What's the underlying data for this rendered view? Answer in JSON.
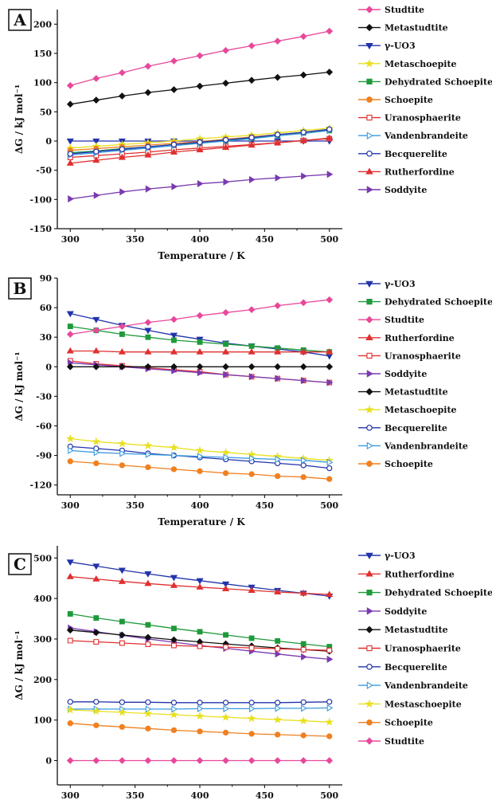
{
  "chart_data": [
    {
      "panel": "A",
      "type": "line",
      "xlabel": "Temperature / K",
      "ylabel": "ΔG / kJ mol⁻¹",
      "xlim": [
        290,
        510
      ],
      "ylim": [
        -150,
        225
      ],
      "xticks": [
        300,
        350,
        400,
        450,
        500
      ],
      "yticks": [
        -150,
        -100,
        -50,
        0,
        50,
        100,
        150,
        200
      ],
      "x": [
        300,
        320,
        340,
        360,
        380,
        400,
        420,
        440,
        460,
        480,
        500
      ],
      "legend_position": "right",
      "series": [
        {
          "name": "Studtite",
          "color": "#e8489a",
          "marker": "diamond",
          "values": [
            95,
            107,
            117,
            128,
            137,
            146,
            155,
            163,
            171,
            179,
            188
          ]
        },
        {
          "name": "Metastudtite",
          "color": "#111111",
          "marker": "diamond",
          "values": [
            63,
            70,
            77,
            83,
            88,
            94,
            99,
            104,
            109,
            113,
            118
          ]
        },
        {
          "name": "γ-UO3",
          "color": "#2233aa",
          "marker": "tri-down",
          "values": [
            0,
            0,
            0,
            0,
            0,
            0,
            0,
            0,
            0,
            0,
            0
          ]
        },
        {
          "name": "Metaschoepite",
          "color": "#e8e020",
          "marker": "star",
          "values": [
            -12,
            -9,
            -6,
            -3,
            0,
            4,
            7,
            10,
            14,
            18,
            22
          ]
        },
        {
          "name": "Dehydrated Schoepite",
          "color": "#1e9a3a",
          "marker": "square",
          "values": [
            -20,
            -17,
            -13,
            -10,
            -6,
            -3,
            1,
            5,
            9,
            14,
            18
          ]
        },
        {
          "name": "Schoepite",
          "color": "#f08020",
          "marker": "circle",
          "values": [
            -16,
            -13,
            -10,
            -7,
            -4,
            -1,
            3,
            7,
            11,
            15,
            20
          ]
        },
        {
          "name": "Uranosphaerite",
          "color": "#e03030",
          "marker": "square-open",
          "values": [
            -28,
            -25,
            -22,
            -19,
            -15,
            -12,
            -9,
            -6,
            -3,
            1,
            4
          ]
        },
        {
          "name": "Vandenbrandeite",
          "color": "#3a9ae0",
          "marker": "tri-right-open",
          "values": [
            -24,
            -20,
            -16,
            -12,
            -8,
            -4,
            0,
            4,
            9,
            13,
            18
          ]
        },
        {
          "name": "Becquerelite",
          "color": "#2233aa",
          "marker": "circle-open",
          "values": [
            -22,
            -18,
            -14,
            -10,
            -6,
            -2,
            2,
            6,
            11,
            15,
            20
          ]
        },
        {
          "name": "Rutherfordine",
          "color": "#e03030",
          "marker": "tri-up",
          "values": [
            -38,
            -33,
            -28,
            -24,
            -19,
            -15,
            -11,
            -7,
            -3,
            1,
            5
          ]
        },
        {
          "name": "Soddyite",
          "color": "#7a3ab0",
          "marker": "tri-right",
          "values": [
            -99,
            -93,
            -87,
            -82,
            -78,
            -73,
            -70,
            -66,
            -63,
            -60,
            -57
          ]
        }
      ]
    },
    {
      "panel": "B",
      "type": "line",
      "xlabel": "Temperature / K",
      "ylabel": "ΔG / kJ mol⁻¹",
      "xlim": [
        290,
        510
      ],
      "ylim": [
        -130,
        90
      ],
      "xticks": [
        300,
        350,
        400,
        450,
        500
      ],
      "yticks": [
        -120,
        -90,
        -60,
        -30,
        0,
        30,
        60,
        90
      ],
      "x": [
        300,
        320,
        340,
        360,
        380,
        400,
        420,
        440,
        460,
        480,
        500
      ],
      "legend_position": "right",
      "series": [
        {
          "name": "γ-UO3",
          "color": "#2233aa",
          "marker": "tri-down",
          "values": [
            54,
            48,
            42,
            37,
            32,
            28,
            24,
            21,
            18,
            15,
            11
          ]
        },
        {
          "name": "Dehydrated Schoepite",
          "color": "#1e9a3a",
          "marker": "square",
          "values": [
            41,
            37,
            33,
            30,
            27,
            25,
            23,
            21,
            19,
            17,
            15
          ]
        },
        {
          "name": "Studtite",
          "color": "#e8489a",
          "marker": "diamond",
          "values": [
            33,
            37,
            41,
            45,
            48,
            52,
            55,
            58,
            62,
            65,
            68
          ]
        },
        {
          "name": "Rutherfordine",
          "color": "#e03030",
          "marker": "tri-up",
          "values": [
            16,
            16,
            15,
            15,
            15,
            15,
            15,
            15,
            15,
            15,
            15
          ]
        },
        {
          "name": "Uranosphaerite",
          "color": "#e03030",
          "marker": "square-open",
          "values": [
            6,
            3,
            1,
            -1,
            -3,
            -5,
            -8,
            -10,
            -12,
            -14,
            -16
          ]
        },
        {
          "name": "Soddyite",
          "color": "#7a3ab0",
          "marker": "tri-right",
          "values": [
            4,
            2,
            0,
            -2,
            -4,
            -6,
            -8,
            -10,
            -12,
            -14,
            -16
          ]
        },
        {
          "name": "Metastudtite",
          "color": "#111111",
          "marker": "diamond",
          "values": [
            0,
            0,
            0,
            0,
            0,
            0,
            0,
            0,
            0,
            0,
            0
          ]
        },
        {
          "name": "Metaschoepite",
          "color": "#e8e020",
          "marker": "star",
          "values": [
            -73,
            -76,
            -78,
            -80,
            -82,
            -85,
            -87,
            -89,
            -91,
            -93,
            -95
          ]
        },
        {
          "name": "Becquerelite",
          "color": "#2233aa",
          "marker": "circle-open",
          "values": [
            -81,
            -83,
            -85,
            -88,
            -90,
            -92,
            -94,
            -96,
            -98,
            -100,
            -103
          ]
        },
        {
          "name": "Vandenbrandeite",
          "color": "#3a9ae0",
          "marker": "tri-right-open",
          "values": [
            -85,
            -87,
            -88,
            -89,
            -90,
            -91,
            -92,
            -93,
            -94,
            -95,
            -97
          ]
        },
        {
          "name": "Schoepite",
          "color": "#f08020",
          "marker": "circle",
          "values": [
            -96,
            -98,
            -100,
            -102,
            -104,
            -106,
            -108,
            -109,
            -111,
            -112,
            -114
          ]
        }
      ]
    },
    {
      "panel": "C",
      "type": "line",
      "xlabel": "Temperature / K",
      "ylabel": "ΔG / kJ mol⁻¹",
      "xlim": [
        290,
        510
      ],
      "ylim": [
        -60,
        530
      ],
      "xticks": [
        300,
        350,
        400,
        450,
        500
      ],
      "yticks": [
        0,
        100,
        200,
        300,
        400,
        500
      ],
      "x": [
        300,
        320,
        340,
        360,
        380,
        400,
        420,
        440,
        460,
        480,
        500
      ],
      "legend_position": "right",
      "series": [
        {
          "name": "γ-UO3",
          "color": "#2233aa",
          "marker": "tri-down",
          "values": [
            490,
            480,
            470,
            461,
            452,
            444,
            436,
            428,
            420,
            413,
            406
          ]
        },
        {
          "name": "Rutherfordine",
          "color": "#e03030",
          "marker": "tri-up",
          "values": [
            454,
            448,
            442,
            437,
            432,
            428,
            424,
            420,
            416,
            413,
            410
          ]
        },
        {
          "name": "Dehydrated Schoepite",
          "color": "#1e9a3a",
          "marker": "square",
          "values": [
            362,
            352,
            343,
            335,
            326,
            318,
            310,
            302,
            295,
            288,
            281
          ]
        },
        {
          "name": "Soddyite",
          "color": "#7a3ab0",
          "marker": "tri-right",
          "values": [
            327,
            318,
            309,
            300,
            292,
            284,
            277,
            270,
            263,
            256,
            250
          ]
        },
        {
          "name": "Metastudtite",
          "color": "#111111",
          "marker": "diamond",
          "values": [
            322,
            316,
            310,
            304,
            298,
            293,
            288,
            283,
            278,
            274,
            270
          ]
        },
        {
          "name": "Uranosphaerite",
          "color": "#e03030",
          "marker": "square-open",
          "values": [
            296,
            293,
            290,
            287,
            284,
            282,
            280,
            278,
            276,
            274,
            272
          ]
        },
        {
          "name": "Becquerelite",
          "color": "#2233aa",
          "marker": "circle-open",
          "values": [
            145,
            145,
            144,
            144,
            143,
            143,
            143,
            143,
            143,
            144,
            145
          ]
        },
        {
          "name": "Vandenbrandeite",
          "color": "#3a9ae0",
          "marker": "tri-right-open",
          "values": [
            127,
            127,
            127,
            127,
            127,
            128,
            128,
            128,
            129,
            129,
            130
          ]
        },
        {
          "name": "Mestaschoepite",
          "color": "#e8e020",
          "marker": "star",
          "values": [
            125,
            122,
            119,
            116,
            113,
            110,
            107,
            104,
            101,
            98,
            95
          ]
        },
        {
          "name": "Schoepite",
          "color": "#f08020",
          "marker": "circle",
          "values": [
            92,
            87,
            83,
            79,
            75,
            72,
            69,
            66,
            64,
            62,
            60
          ]
        },
        {
          "name": "Studtite",
          "color": "#e8489a",
          "marker": "diamond",
          "values": [
            0,
            0,
            0,
            0,
            0,
            0,
            0,
            0,
            0,
            0,
            0
          ]
        }
      ]
    }
  ]
}
